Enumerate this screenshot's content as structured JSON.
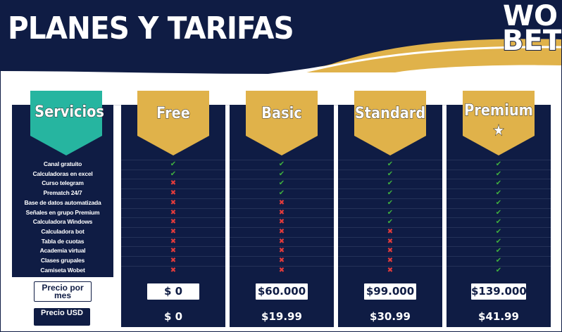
{
  "header": {
    "title": "PLANES Y TARIFAS",
    "logo": {
      "line1": "WO",
      "line2": "BET"
    }
  },
  "services_header": "Servicios",
  "services": [
    "Canal gratuito",
    "Calculadoras en excel",
    "Curso telegram",
    "Prematch 24/7",
    "Base de datos automatizada",
    "Señales en grupo Premium",
    "Calculadora Windows",
    "Calculadora bot",
    "Tabla de cuotas",
    "Academia virtual",
    "Clases grupales",
    "Camiseta Wobet"
  ],
  "price_label": "Precio por mes",
  "usd_label": "Precio USD",
  "plans": [
    {
      "name": "Free",
      "price": "$ 0",
      "usd": "$ 0",
      "includes": [
        true,
        true,
        false,
        false,
        false,
        false,
        false,
        false,
        false,
        false,
        false,
        false
      ]
    },
    {
      "name": "Basic",
      "price": "$60.000",
      "usd": "$19.99",
      "includes": [
        true,
        true,
        true,
        true,
        false,
        false,
        false,
        false,
        false,
        false,
        false,
        false
      ]
    },
    {
      "name": "Standard",
      "price": "$99.000",
      "usd": "$30.99",
      "includes": [
        true,
        true,
        true,
        true,
        true,
        true,
        true,
        false,
        false,
        false,
        false,
        false
      ]
    },
    {
      "name": "Premium",
      "price": "$139.000",
      "usd": "$41.99",
      "includes": [
        true,
        true,
        true,
        true,
        true,
        true,
        true,
        true,
        true,
        true,
        true,
        true
      ],
      "star": true
    }
  ],
  "colors": {
    "navy": "#0f1c44",
    "gold": "#e0b24a",
    "teal": "#26b5a0",
    "check": "#3fae3f",
    "cross": "#e23b3b"
  },
  "icons": {
    "included": "check-icon",
    "excluded": "cross-icon",
    "premium": "star-icon"
  }
}
